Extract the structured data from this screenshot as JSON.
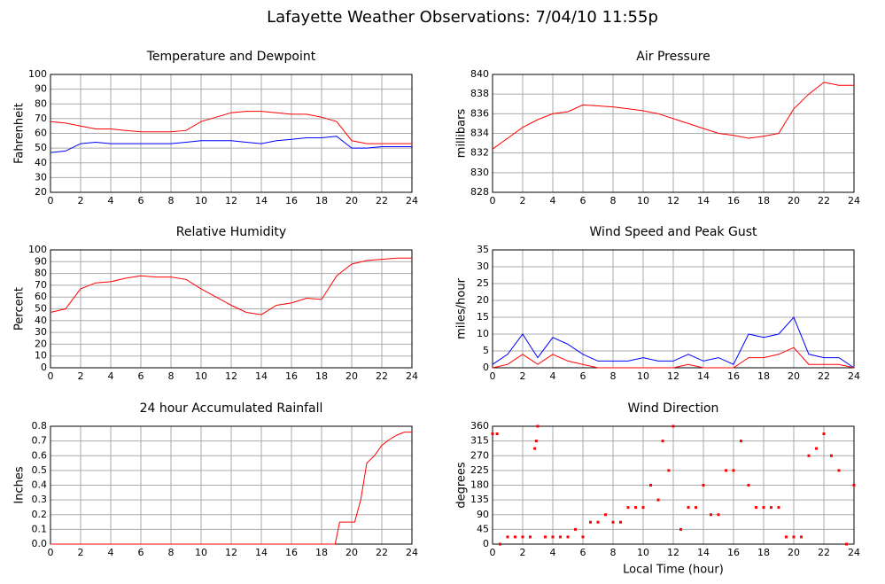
{
  "title": "Lafayette Weather Observations: 7/04/10 11:55p",
  "chart_data": [
    {
      "type": "line",
      "title": "Temperature and Dewpoint",
      "ylabel": "Fahrenheit",
      "x": [
        0,
        1,
        2,
        3,
        4,
        5,
        6,
        7,
        8,
        9,
        10,
        11,
        12,
        13,
        14,
        15,
        16,
        17,
        18,
        19,
        20,
        21,
        22,
        23,
        24
      ],
      "series": [
        {
          "color": "#ff0000",
          "values": [
            68,
            67,
            65,
            63,
            63,
            62,
            61,
            61,
            61,
            62,
            68,
            71,
            74,
            75,
            75,
            74,
            73,
            73,
            71,
            68,
            55,
            53,
            53,
            53,
            53
          ]
        },
        {
          "color": "#0000ff",
          "values": [
            47,
            48,
            53,
            54,
            53,
            53,
            53,
            53,
            53,
            54,
            55,
            55,
            55,
            54,
            53,
            55,
            56,
            57,
            57,
            58,
            50,
            50,
            51,
            51,
            51
          ]
        }
      ],
      "xlim": [
        0,
        24
      ],
      "xticks": [
        0,
        2,
        4,
        6,
        8,
        10,
        12,
        14,
        16,
        18,
        20,
        22,
        24
      ],
      "ylim": [
        20,
        100
      ],
      "yticks": [
        20,
        30,
        40,
        50,
        60,
        70,
        80,
        90,
        100
      ],
      "grid": true
    },
    {
      "type": "line",
      "title": "Air Pressure",
      "ylabel": "millibars",
      "x": [
        0,
        1,
        2,
        3,
        4,
        5,
        6,
        7,
        8,
        9,
        10,
        11,
        12,
        13,
        14,
        15,
        16,
        17,
        18,
        19,
        20,
        21,
        22,
        23,
        24
      ],
      "series": [
        {
          "color": "#ff0000",
          "values": [
            832.4,
            833.5,
            834.6,
            835.4,
            836.0,
            836.2,
            836.9,
            836.8,
            836.7,
            836.5,
            836.3,
            836.0,
            835.5,
            835.0,
            834.5,
            834.0,
            833.8,
            833.5,
            833.7,
            834.0,
            836.5,
            838.0,
            839.2,
            838.9,
            838.9
          ]
        }
      ],
      "xlim": [
        0,
        24
      ],
      "xticks": [
        0,
        2,
        4,
        6,
        8,
        10,
        12,
        14,
        16,
        18,
        20,
        22,
        24
      ],
      "ylim": [
        828,
        840
      ],
      "yticks": [
        828,
        830,
        832,
        834,
        836,
        838,
        840
      ],
      "grid": true
    },
    {
      "type": "line",
      "title": "Relative Humidity",
      "ylabel": "Percent",
      "x": [
        0,
        1,
        2,
        3,
        4,
        5,
        6,
        7,
        8,
        9,
        10,
        11,
        12,
        13,
        14,
        15,
        16,
        17,
        18,
        19,
        20,
        21,
        22,
        23,
        24
      ],
      "series": [
        {
          "color": "#ff0000",
          "values": [
            47,
            50,
            67,
            72,
            73,
            76,
            78,
            77,
            77,
            75,
            67,
            60,
            53,
            47,
            45,
            53,
            55,
            59,
            58,
            78,
            88,
            91,
            92,
            93,
            93
          ]
        }
      ],
      "xlim": [
        0,
        24
      ],
      "xticks": [
        0,
        2,
        4,
        6,
        8,
        10,
        12,
        14,
        16,
        18,
        20,
        22,
        24
      ],
      "ylim": [
        0,
        100
      ],
      "yticks": [
        0,
        10,
        20,
        30,
        40,
        50,
        60,
        70,
        80,
        90,
        100
      ],
      "grid": true
    },
    {
      "type": "line",
      "title": "Wind Speed and Peak Gust",
      "ylabel": "miles/hour",
      "x": [
        0,
        1,
        2,
        3,
        4,
        5,
        6,
        7,
        8,
        9,
        10,
        11,
        12,
        13,
        14,
        15,
        16,
        17,
        18,
        19,
        20,
        21,
        22,
        23,
        24
      ],
      "series": [
        {
          "color": "#0000ff",
          "values": [
            1,
            4,
            10,
            3,
            9,
            7,
            4,
            2,
            2,
            2,
            3,
            2,
            2,
            4,
            2,
            3,
            1,
            10,
            9,
            10,
            15,
            4,
            3,
            3,
            0
          ]
        },
        {
          "color": "#ff0000",
          "values": [
            0,
            1,
            4,
            1,
            4,
            2,
            1,
            0,
            0,
            0,
            0,
            0,
            0,
            1,
            0,
            0,
            0,
            3,
            3,
            4,
            6,
            1,
            1,
            1,
            0
          ]
        }
      ],
      "xlim": [
        0,
        24
      ],
      "xticks": [
        0,
        2,
        4,
        6,
        8,
        10,
        12,
        14,
        16,
        18,
        20,
        22,
        24
      ],
      "ylim": [
        0,
        35
      ],
      "yticks": [
        0,
        5,
        10,
        15,
        20,
        25,
        30,
        35
      ],
      "grid": true
    },
    {
      "type": "line",
      "title": "24 hour Accumulated Rainfall",
      "ylabel": "Inches",
      "x": [
        0,
        18.9,
        19.2,
        20.2,
        20.6,
        21,
        21.5,
        22,
        22.5,
        23,
        23.5,
        24
      ],
      "series": [
        {
          "color": "#ff0000",
          "values": [
            0,
            0,
            0.15,
            0.15,
            0.3,
            0.55,
            0.6,
            0.67,
            0.71,
            0.74,
            0.76,
            0.76
          ]
        }
      ],
      "xlim": [
        0,
        24
      ],
      "xticks": [
        0,
        2,
        4,
        6,
        8,
        10,
        12,
        14,
        16,
        18,
        20,
        22,
        24
      ],
      "ylim": [
        0,
        0.8
      ],
      "yticks": [
        {
          "value": 0,
          "label": "0.0"
        },
        0.1,
        0.2,
        0.3,
        0.4,
        0.5,
        0.6,
        0.7,
        0.8
      ],
      "grid": true
    },
    {
      "type": "scatter",
      "title": "Wind Direction",
      "ylabel": "degrees",
      "xlabel": "Local Time (hour)",
      "x": [
        0,
        0.3,
        0.5,
        1,
        1.5,
        2,
        2.5,
        2.8,
        2.9,
        3,
        3.5,
        4,
        4.5,
        5,
        5.5,
        6,
        6.5,
        7,
        7.5,
        8,
        8.5,
        9,
        9.5,
        10,
        10.5,
        11,
        11.3,
        11.7,
        12,
        12.5,
        13,
        13.5,
        14,
        14.5,
        15,
        15.5,
        16,
        16.5,
        17,
        17.5,
        18,
        18.5,
        19,
        19.5,
        20,
        20.5,
        21,
        21.5,
        22,
        22.5,
        23,
        23.5,
        24
      ],
      "series": [
        {
          "color": "#ff0000",
          "values": [
            337,
            337,
            0,
            22,
            22,
            22,
            22,
            292,
            315,
            360,
            22,
            22,
            22,
            22,
            45,
            22,
            67,
            67,
            90,
            67,
            67,
            112,
            112,
            112,
            180,
            135,
            315,
            225,
            360,
            45,
            112,
            112,
            180,
            90,
            90,
            225,
            225,
            315,
            180,
            112,
            112,
            112,
            112,
            22,
            22,
            22,
            270,
            292,
            337,
            270,
            225,
            0,
            180
          ]
        }
      ],
      "xlim": [
        0,
        24
      ],
      "xticks": [
        0,
        2,
        4,
        6,
        8,
        10,
        12,
        14,
        16,
        18,
        20,
        22,
        24
      ],
      "ylim": [
        0,
        360
      ],
      "yticks": [
        0,
        45,
        90,
        135,
        180,
        225,
        270,
        315,
        360
      ],
      "grid": true
    }
  ]
}
